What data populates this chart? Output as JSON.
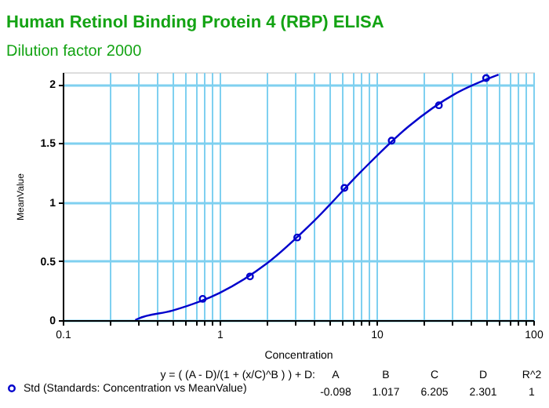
{
  "chart_data": {
    "type": "scatter",
    "title": "Human Retinol Binding Protein 4 (RBP) ELISA",
    "subtitle": "Dilution factor 2000",
    "xlabel": "Concentration",
    "ylabel": "MeanValue",
    "log": "x",
    "xlim": [
      0.1,
      100
    ],
    "ylim": [
      0,
      2.1
    ],
    "xticks": [
      0.1,
      {
        "value": 0.2,
        "label": null
      },
      {
        "value": 0.3,
        "label": null
      },
      {
        "value": 0.4,
        "label": null
      },
      {
        "value": 0.5,
        "label": null
      },
      {
        "value": 0.6,
        "label": null
      },
      {
        "value": 0.7,
        "label": null
      },
      {
        "value": 0.8,
        "label": null
      },
      {
        "value": 0.9,
        "label": null
      },
      1,
      {
        "value": 2,
        "label": null
      },
      {
        "value": 3,
        "label": null
      },
      {
        "value": 4,
        "label": null
      },
      {
        "value": 5,
        "label": null
      },
      {
        "value": 6,
        "label": null
      },
      {
        "value": 7,
        "label": null
      },
      {
        "value": 8,
        "label": null
      },
      {
        "value": 9,
        "label": null
      },
      10,
      {
        "value": 20,
        "label": null
      },
      {
        "value": 30,
        "label": null
      },
      {
        "value": 40,
        "label": null
      },
      {
        "value": 50,
        "label": null
      },
      {
        "value": 60,
        "label": null
      },
      {
        "value": 70,
        "label": null
      },
      {
        "value": 80,
        "label": null
      },
      {
        "value": 90,
        "label": null
      },
      100
    ],
    "yticks": [
      0,
      0.5,
      1,
      1.5,
      2
    ],
    "grid": true,
    "legend": "bottom",
    "series": [
      {
        "name": "Std (Standards: Concentration vs MeanValue)",
        "marker": "circle",
        "color": "#0000cc",
        "x": [
          0.78,
          1.5625,
          3.125,
          6.25,
          12.5,
          25,
          50
        ],
        "values": [
          0.18,
          0.37,
          0.7,
          1.12,
          1.52,
          1.82,
          2.05
        ]
      },
      {
        "type": "line",
        "color": "#0000cc",
        "line_style": "solid",
        "x": [
          0.29,
          0.3,
          0.5,
          1,
          2,
          4,
          8,
          16,
          32,
          60
        ],
        "values": [
          0,
          0.01,
          0.08,
          0.23,
          0.48,
          0.84,
          1.26,
          1.64,
          1.92,
          2.08
        ]
      }
    ],
    "annotations": [
      "y = ( (A - D)/(1 + (x/C)^B ) ) + D:",
      "A",
      "B",
      "C",
      "D",
      "R^2",
      "-0.098",
      "1.017",
      "6.205",
      "2.301",
      "1"
    ]
  }
}
